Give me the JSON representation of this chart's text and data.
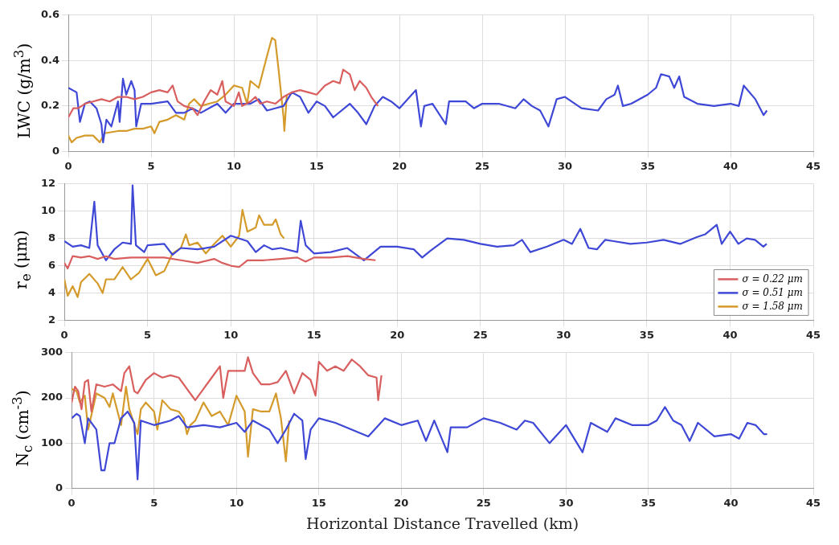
{
  "chart_data": [
    {
      "type": "line",
      "ylabel": "LWC (g/m$^{3}$)",
      "xlim": [
        0,
        45
      ],
      "xticks": [
        0,
        5,
        10,
        15,
        20,
        25,
        30,
        35,
        40,
        45
      ],
      "ylim": [
        0,
        0.6
      ],
      "yticks": [
        0,
        0.2,
        0.4,
        0.6
      ],
      "grid": true,
      "legend": false,
      "series": [
        {
          "color": "#d95f5f",
          "x": [
            0,
            0.3,
            0.6,
            1,
            1.5,
            2,
            2.5,
            3,
            3.5,
            4,
            4.5,
            5,
            5.5,
            6,
            6.3,
            6.6,
            7,
            7.5,
            7.8,
            8.2,
            8.6,
            9,
            9.3,
            9.5,
            10,
            10.3,
            10.5,
            11,
            11.3,
            11.6,
            12,
            12.5,
            13,
            13.5,
            14,
            14.5,
            15,
            15.5,
            16,
            16.4,
            16.6,
            17,
            17.3,
            17.6,
            18,
            18.3,
            18.7
          ],
          "values": [
            0.15,
            0.19,
            0.19,
            0.21,
            0.22,
            0.23,
            0.22,
            0.24,
            0.24,
            0.23,
            0.24,
            0.26,
            0.27,
            0.26,
            0.29,
            0.22,
            0.2,
            0.19,
            0.16,
            0.22,
            0.27,
            0.25,
            0.31,
            0.22,
            0.2,
            0.26,
            0.2,
            0.22,
            0.24,
            0.21,
            0.22,
            0.21,
            0.24,
            0.26,
            0.27,
            0.26,
            0.25,
            0.29,
            0.31,
            0.3,
            0.36,
            0.34,
            0.27,
            0.31,
            0.28,
            0.24,
            0.2
          ]
        },
        {
          "color": "#3f48d6",
          "x": [
            0,
            0.5,
            0.7,
            1,
            1.3,
            1.7,
            2,
            2.1,
            2.3,
            2.6,
            3,
            3.1,
            3.3,
            3.5,
            3.8,
            4,
            4.1,
            4.4,
            5,
            6,
            6.5,
            7,
            7.5,
            8,
            9,
            9.5,
            10,
            11,
            11.5,
            12,
            12.5,
            13,
            13.5,
            14,
            14.5,
            15,
            15.5,
            16,
            17,
            17.5,
            18,
            18.5,
            19,
            19.5,
            20,
            21,
            21.3,
            21.5,
            22,
            22.8,
            23,
            24,
            24.5,
            25,
            26,
            27,
            27.5,
            28,
            28.5,
            29,
            29.5,
            30,
            31,
            32,
            32.5,
            33,
            33.2,
            33.5,
            34,
            35,
            35.5,
            35.8,
            36.3,
            36.6,
            36.9,
            37.2,
            38,
            39,
            40,
            40.5,
            40.8,
            41.5,
            42,
            42.2
          ],
          "values": [
            0.28,
            0.26,
            0.13,
            0.21,
            0.22,
            0.19,
            0.12,
            0.04,
            0.14,
            0.11,
            0.22,
            0.13,
            0.32,
            0.25,
            0.31,
            0.27,
            0.11,
            0.21,
            0.21,
            0.22,
            0.17,
            0.17,
            0.19,
            0.17,
            0.21,
            0.17,
            0.21,
            0.21,
            0.23,
            0.18,
            0.19,
            0.2,
            0.26,
            0.24,
            0.17,
            0.22,
            0.2,
            0.15,
            0.21,
            0.17,
            0.12,
            0.2,
            0.24,
            0.22,
            0.19,
            0.27,
            0.11,
            0.2,
            0.21,
            0.12,
            0.22,
            0.22,
            0.19,
            0.21,
            0.21,
            0.19,
            0.23,
            0.2,
            0.18,
            0.11,
            0.23,
            0.24,
            0.19,
            0.18,
            0.23,
            0.25,
            0.29,
            0.2,
            0.21,
            0.25,
            0.28,
            0.34,
            0.33,
            0.28,
            0.33,
            0.24,
            0.21,
            0.2,
            0.21,
            0.2,
            0.29,
            0.23,
            0.16,
            0.18
          ]
        },
        {
          "color": "#d49a2a",
          "x": [
            0,
            0.2,
            0.5,
            1,
            1.5,
            1.9,
            2.2,
            3,
            3.5,
            4,
            4.5,
            5,
            5.2,
            5.5,
            6,
            6.5,
            7,
            7.3,
            7.6,
            8,
            8.5,
            9,
            9.5,
            10,
            10.5,
            10.8,
            11,
            11.5,
            12,
            12.3,
            12.5,
            12.7,
            13,
            13.05,
            13.2
          ],
          "values": [
            0.07,
            0.04,
            0.06,
            0.07,
            0.07,
            0.04,
            0.08,
            0.09,
            0.09,
            0.1,
            0.1,
            0.11,
            0.08,
            0.13,
            0.14,
            0.16,
            0.14,
            0.21,
            0.23,
            0.2,
            0.21,
            0.22,
            0.25,
            0.29,
            0.28,
            0.21,
            0.31,
            0.28,
            0.42,
            0.5,
            0.49,
            0.36,
            0.15,
            0.09,
            0.25
          ]
        }
      ]
    },
    {
      "type": "line",
      "ylabel": "r$_{e}$ (μm)",
      "xlim": [
        0,
        45
      ],
      "xticks": [
        0,
        5,
        10,
        15,
        20,
        25,
        30,
        35,
        40,
        45
      ],
      "ylim": [
        2,
        12
      ],
      "yticks": [
        2,
        4,
        6,
        8,
        10,
        12
      ],
      "grid": true,
      "legend": "bottom right",
      "series": [
        {
          "name": "σ = 0.22 μm",
          "color": "#d95f5f",
          "x": [
            0,
            0.2,
            0.5,
            1,
            1.5,
            2,
            2.5,
            3,
            4,
            5,
            6,
            7,
            8,
            9,
            9.5,
            10,
            10.5,
            11,
            12,
            13,
            14,
            14.5,
            15,
            16,
            17,
            18,
            18.7
          ],
          "values": [
            6.2,
            5.8,
            6.7,
            6.6,
            6.7,
            6.5,
            6.7,
            6.5,
            6.6,
            6.6,
            6.6,
            6.4,
            6.2,
            6.5,
            6.2,
            6,
            5.9,
            6.4,
            6.4,
            6.5,
            6.6,
            6.3,
            6.6,
            6.6,
            6.7,
            6.5,
            6.4
          ]
        },
        {
          "name": "σ = 0.51 μm",
          "color": "#3f48d6",
          "x": [
            0,
            0.5,
            1,
            1.5,
            1.8,
            2,
            2.5,
            3,
            3.5,
            4,
            4.1,
            4.3,
            4.8,
            5,
            6,
            6.5,
            7,
            8,
            9,
            10,
            11,
            11.5,
            12,
            12.5,
            13,
            14,
            14.2,
            14.5,
            15,
            16,
            17,
            18,
            19,
            20,
            21,
            21.5,
            22,
            23,
            24,
            25,
            26,
            27,
            27.5,
            28,
            29,
            30,
            30.5,
            31,
            31.5,
            32,
            32.5,
            33,
            34,
            35,
            36,
            37,
            38,
            38.5,
            39.2,
            39.5,
            40,
            40.5,
            41,
            41.5,
            42,
            42.2
          ],
          "values": [
            7.8,
            7.4,
            7.5,
            7.3,
            10.7,
            7.5,
            6.4,
            7.2,
            7.7,
            7.6,
            11.9,
            7.5,
            7,
            7.5,
            7.6,
            6.8,
            7.3,
            7.2,
            7.4,
            8.2,
            7.8,
            7,
            7.5,
            7.2,
            7.3,
            7,
            9.3,
            7.5,
            6.9,
            7,
            7.3,
            6.4,
            7.4,
            7.4,
            7.2,
            6.6,
            7.1,
            8,
            7.9,
            7.6,
            7.4,
            7.5,
            7.9,
            7,
            7.4,
            7.9,
            7.6,
            8.7,
            7.3,
            7.2,
            7.9,
            7.8,
            7.6,
            7.7,
            7.9,
            7.6,
            8.1,
            8.3,
            9,
            7.6,
            8.5,
            7.6,
            8,
            7.9,
            7.4,
            7.6
          ]
        },
        {
          "name": "σ = 1.58 μm",
          "color": "#d49a2a",
          "x": [
            0,
            0.2,
            0.5,
            0.8,
            1,
            1.5,
            2,
            2.3,
            2.5,
            3,
            3.5,
            4,
            4.5,
            5,
            5.5,
            6,
            6.5,
            7,
            7.3,
            7.5,
            8,
            8.5,
            9,
            9.5,
            10,
            10.5,
            10.7,
            11,
            11.5,
            11.7,
            12,
            12.5,
            12.7,
            13,
            13.2
          ],
          "values": [
            5,
            3.8,
            4.5,
            3.7,
            4.8,
            5.4,
            4.7,
            4,
            5,
            5,
            5.9,
            5,
            5.5,
            6.5,
            5.3,
            5.6,
            6.9,
            7.3,
            8.3,
            7.5,
            7.7,
            6.9,
            7.6,
            8.2,
            7.4,
            8.2,
            10.1,
            8.5,
            8.8,
            9.7,
            9,
            9,
            9.4,
            8.3,
            8
          ]
        }
      ]
    },
    {
      "type": "line",
      "ylabel": "N$_{c}$ (cm$^{-3}$)",
      "xlabel": "Horizontal Distance Travelled (km)",
      "xlim": [
        0,
        45
      ],
      "xticks": [
        0,
        5,
        10,
        15,
        20,
        25,
        30,
        35,
        40,
        45
      ],
      "ylim": [
        0,
        300
      ],
      "yticks": [
        0,
        100,
        200,
        300
      ],
      "grid": true,
      "legend": false,
      "series": [
        {
          "color": "#d95f5f",
          "x": [
            0,
            0.2,
            0.4,
            0.6,
            0.8,
            1,
            1.2,
            1.5,
            2,
            2.5,
            3,
            3.2,
            3.5,
            3.8,
            4,
            4.5,
            5,
            5.5,
            6,
            6.5,
            7,
            7.3,
            7.5,
            8,
            8.5,
            9,
            9.2,
            9.5,
            10,
            10.5,
            10.7,
            11,
            11.5,
            12,
            12.5,
            13,
            13.5,
            14,
            14.5,
            14.8,
            15,
            15.5,
            16,
            16.5,
            17,
            17.5,
            18,
            18.5,
            18.6,
            18.8
          ],
          "values": [
            190,
            225,
            215,
            175,
            235,
            240,
            170,
            230,
            225,
            230,
            215,
            255,
            270,
            215,
            210,
            240,
            255,
            245,
            250,
            245,
            220,
            205,
            195,
            220,
            245,
            270,
            200,
            260,
            260,
            260,
            290,
            255,
            230,
            230,
            235,
            260,
            210,
            255,
            240,
            205,
            280,
            260,
            270,
            260,
            285,
            270,
            250,
            245,
            195,
            250
          ]
        },
        {
          "color": "#3f48d6",
          "x": [
            0,
            0.3,
            0.5,
            0.8,
            1,
            1.5,
            1.8,
            2,
            2.3,
            2.6,
            3,
            3.4,
            3.8,
            4,
            4.2,
            5,
            6,
            6.5,
            7,
            8,
            9,
            10,
            10.5,
            11,
            12,
            12.5,
            13,
            13.5,
            14,
            14.2,
            14.5,
            15,
            16,
            17,
            18,
            19,
            20,
            21,
            21.5,
            22,
            22.8,
            23,
            24,
            25,
            26,
            27,
            27.5,
            28,
            29,
            30,
            31,
            31.5,
            32.5,
            33,
            34,
            35,
            35.5,
            36,
            36.5,
            37,
            37.5,
            38,
            39,
            40,
            40.5,
            41,
            41.5,
            42,
            42.2
          ],
          "values": [
            155,
            165,
            160,
            100,
            155,
            130,
            40,
            40,
            100,
            100,
            155,
            170,
            145,
            20,
            150,
            140,
            150,
            160,
            135,
            140,
            135,
            145,
            125,
            150,
            130,
            100,
            130,
            165,
            150,
            65,
            130,
            155,
            145,
            130,
            115,
            155,
            140,
            150,
            105,
            150,
            80,
            135,
            135,
            155,
            145,
            130,
            150,
            145,
            100,
            140,
            80,
            145,
            125,
            155,
            140,
            140,
            150,
            180,
            150,
            140,
            105,
            145,
            115,
            120,
            110,
            145,
            140,
            120,
            120
          ]
        },
        {
          "color": "#d49a2a",
          "x": [
            0,
            0.3,
            0.5,
            0.8,
            1,
            1.5,
            2,
            2.3,
            2.5,
            3,
            3.3,
            3.5,
            4,
            4.2,
            4.5,
            5,
            5.2,
            5.5,
            6,
            6.5,
            6.8,
            7,
            7.2,
            7.5,
            8,
            8.5,
            9,
            9.5,
            10,
            10.5,
            10.7,
            11,
            11.5,
            12,
            12.4,
            12.7,
            13,
            13.2
          ],
          "values": [
            220,
            215,
            190,
            205,
            130,
            210,
            200,
            180,
            210,
            140,
            225,
            175,
            120,
            175,
            190,
            170,
            130,
            195,
            175,
            170,
            155,
            120,
            140,
            150,
            190,
            160,
            170,
            140,
            205,
            170,
            70,
            175,
            170,
            170,
            210,
            155,
            60,
            150
          ]
        }
      ]
    }
  ]
}
